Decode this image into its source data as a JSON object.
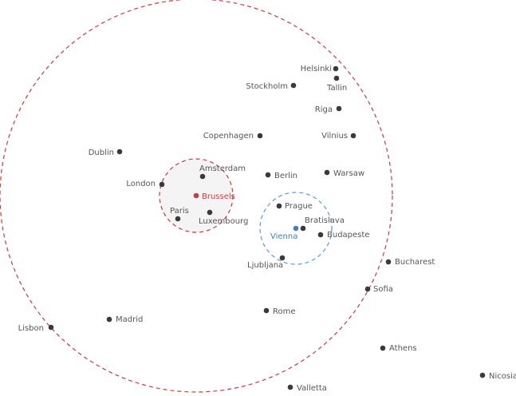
{
  "colors": {
    "city_dot": "#3a3a3a",
    "label": "#555555",
    "highlight_red": "#cc3b3b",
    "highlight_blue": "#3f7fc2",
    "red_circle_stroke": "#cc3b3b",
    "blue_circle_stroke": "#5b9bd5",
    "small_circle_fill": "#f4f4f4"
  },
  "cities": [
    {
      "name": "Helsinki",
      "style": "normal"
    },
    {
      "name": "Tallin",
      "style": "normal"
    },
    {
      "name": "Stockholm",
      "style": "normal"
    },
    {
      "name": "Riga",
      "style": "normal"
    },
    {
      "name": "Copenhagen",
      "style": "normal"
    },
    {
      "name": "Vilnius",
      "style": "normal"
    },
    {
      "name": "Dublin",
      "style": "normal"
    },
    {
      "name": "Amsterdam",
      "style": "normal"
    },
    {
      "name": "Berlin",
      "style": "normal"
    },
    {
      "name": "Warsaw",
      "style": "normal"
    },
    {
      "name": "London",
      "style": "normal"
    },
    {
      "name": "Brussels",
      "style": "red"
    },
    {
      "name": "Paris",
      "style": "normal"
    },
    {
      "name": "Luxembourg",
      "style": "normal"
    },
    {
      "name": "Prague",
      "style": "normal"
    },
    {
      "name": "Bratislava",
      "style": "normal"
    },
    {
      "name": "Vienna",
      "style": "blue"
    },
    {
      "name": "Budapeste",
      "style": "normal"
    },
    {
      "name": "Ljubljana",
      "style": "normal"
    },
    {
      "name": "Bucharest",
      "style": "normal"
    },
    {
      "name": "Sofia",
      "style": "normal"
    },
    {
      "name": "Madrid",
      "style": "normal"
    },
    {
      "name": "Rome",
      "style": "normal"
    },
    {
      "name": "Lisbon",
      "style": "normal"
    },
    {
      "name": "Athens",
      "style": "normal"
    },
    {
      "name": "Nicosia",
      "style": "normal"
    },
    {
      "name": "Valletta",
      "style": "normal"
    }
  ]
}
